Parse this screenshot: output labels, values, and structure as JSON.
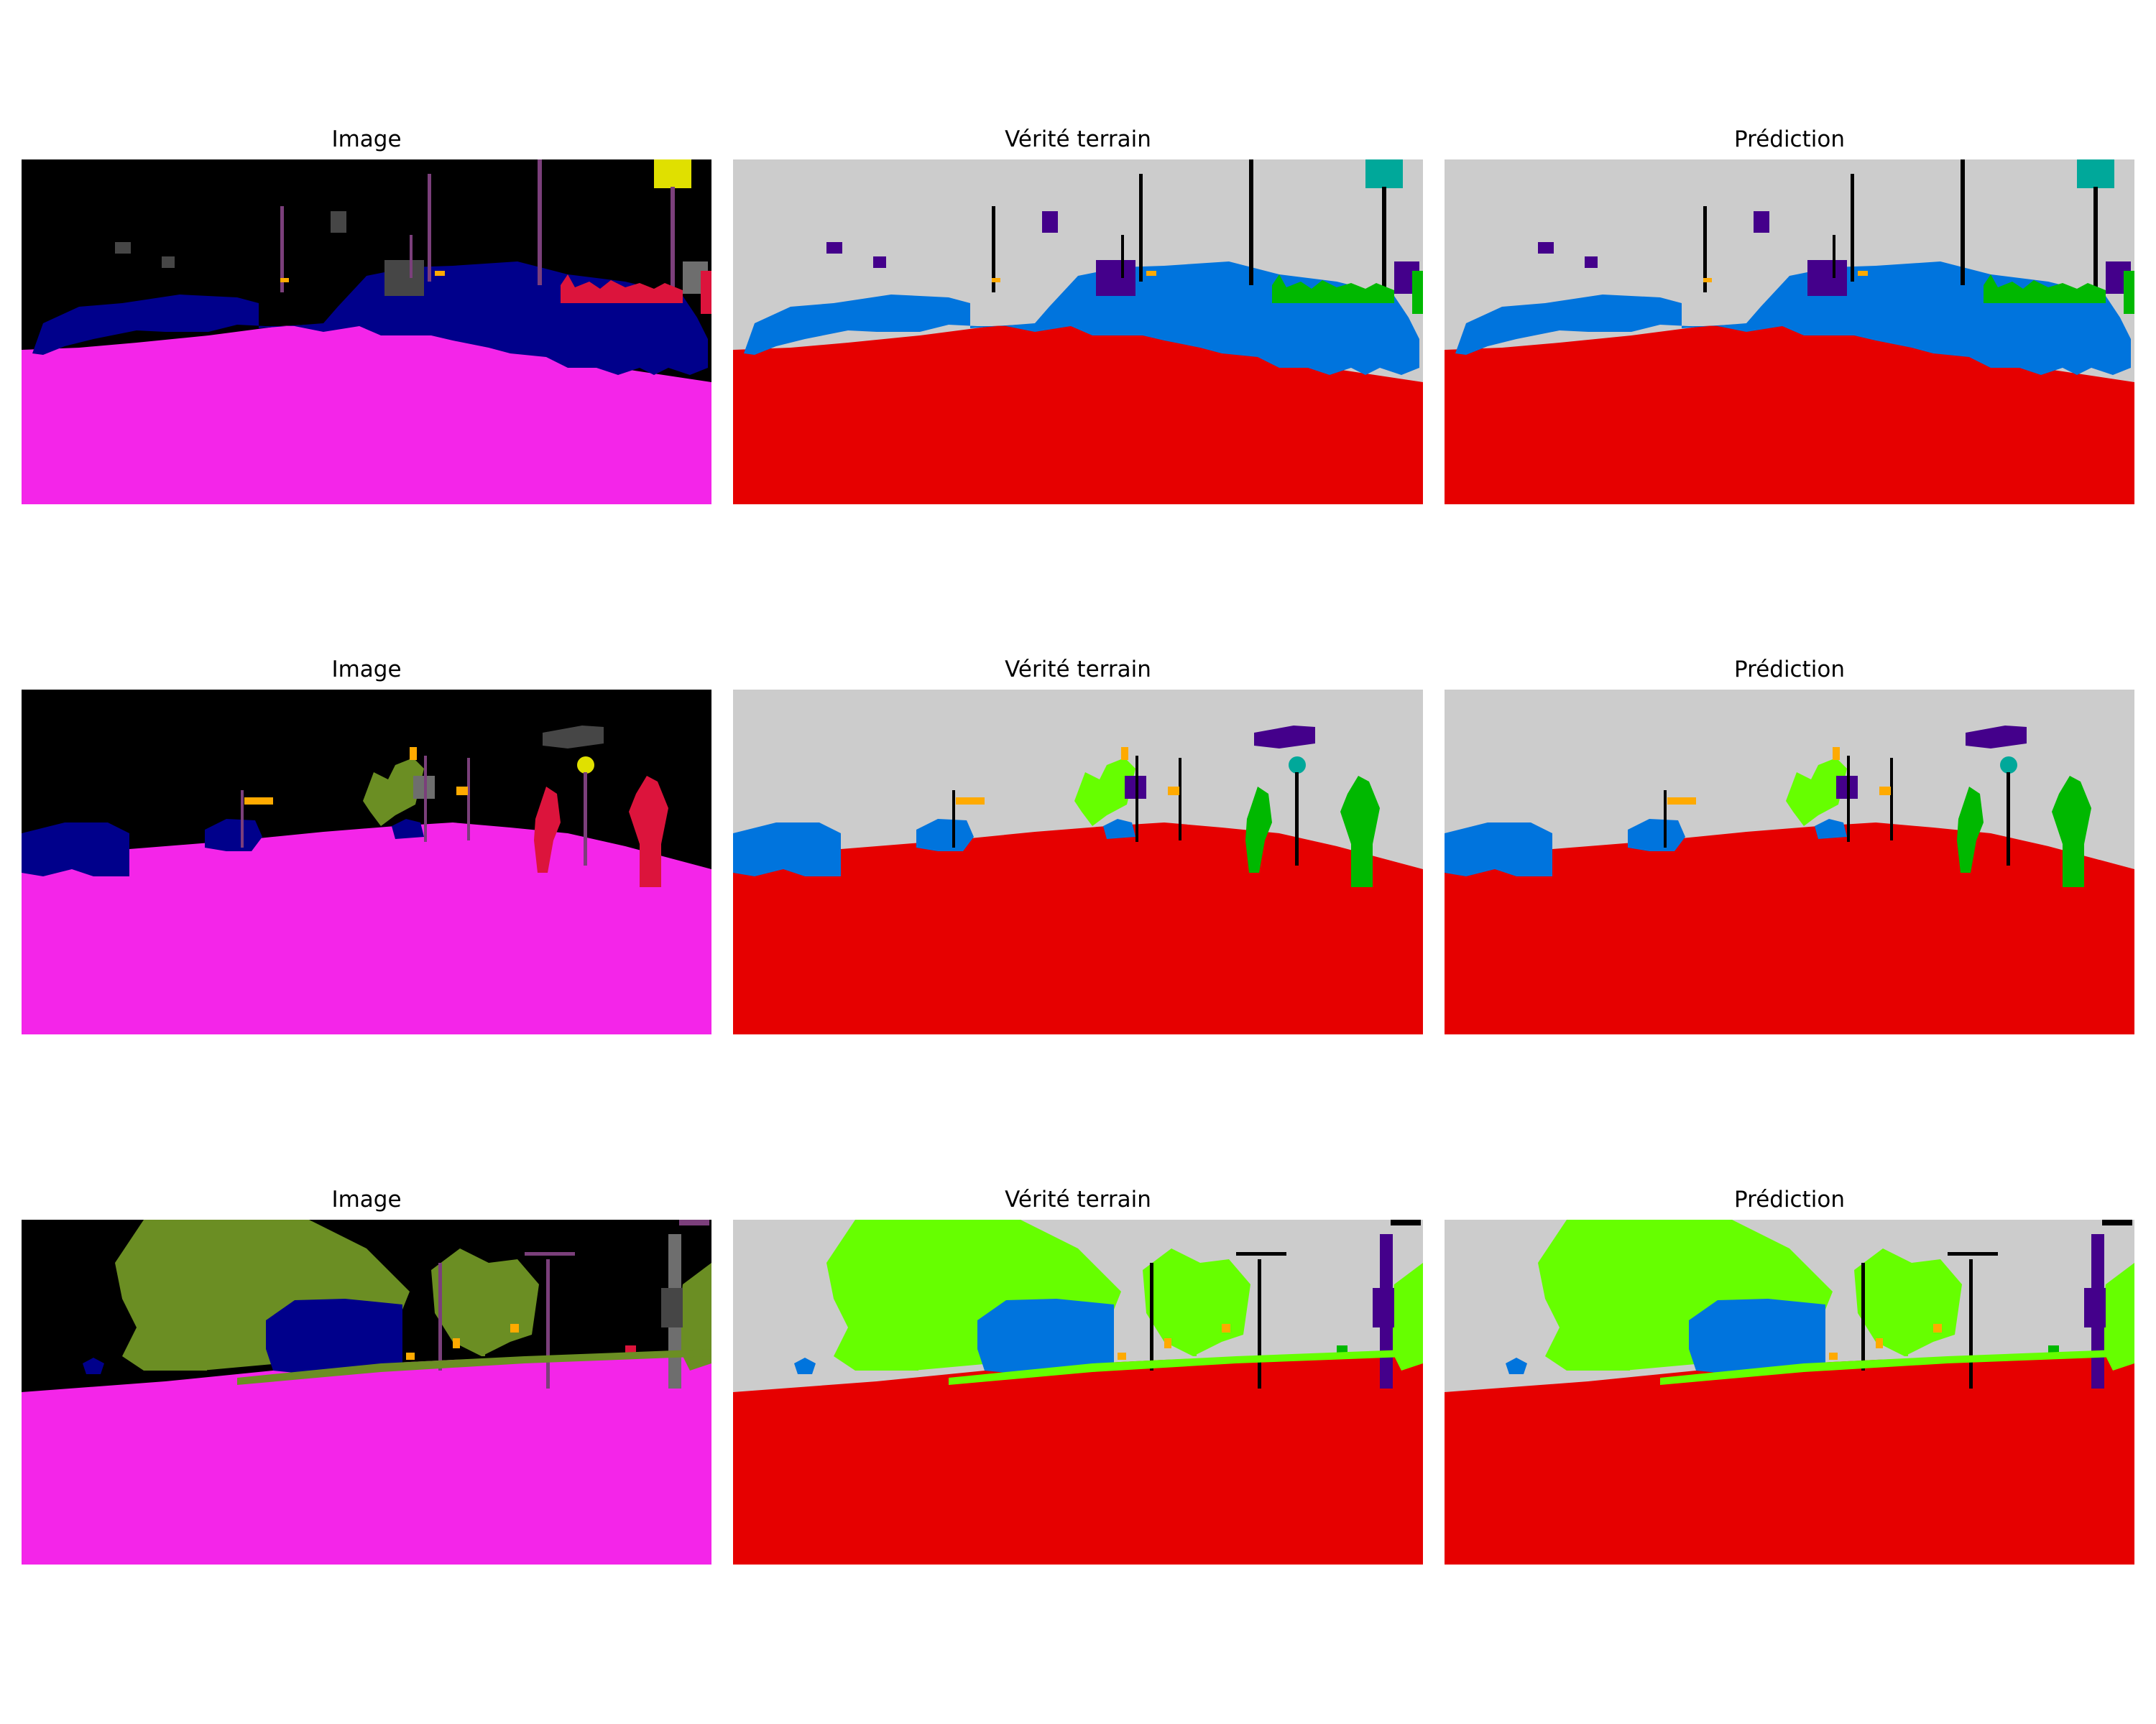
{
  "titles": {
    "image": "Image",
    "ground_truth": "Vérité terrain",
    "prediction": "Prédiction"
  },
  "palettes": {
    "image": {
      "sky": "#000000",
      "road": "#f425e9",
      "car": "#00008b",
      "tree": "#6b8e23",
      "person": "#dc143c",
      "pole": "#7b3f7b",
      "building": "#464646",
      "sign": "#e0e000",
      "light": "#ffaa00",
      "truck": "#6e6e6e"
    },
    "label": {
      "sky": "#cccccc",
      "road": "#e60000",
      "car": "#0074dd",
      "tree": "#66ff00",
      "person": "#00b800",
      "pole": "#000000",
      "building": "#44008b",
      "sign": "#00a89a",
      "light": "#ffaa00",
      "truck": "#44008b"
    }
  },
  "rows": [
    {
      "scene": "scene-1"
    },
    {
      "scene": "scene-2"
    },
    {
      "scene": "scene-3"
    }
  ]
}
